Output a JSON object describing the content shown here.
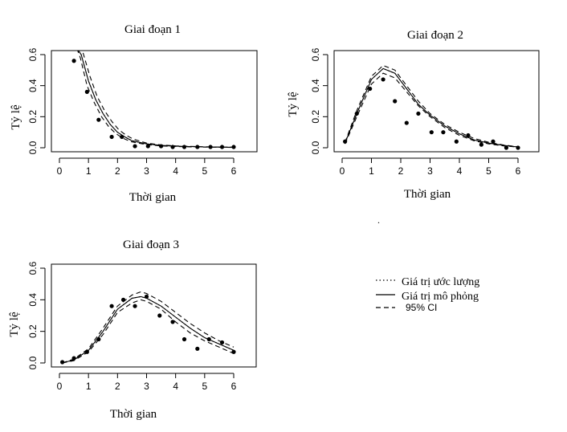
{
  "chart_data": [
    {
      "type": "line",
      "title": "Giai đoạn 1",
      "xlabel": "Thời gian",
      "ylabel": "Tỷ lệ",
      "xlim": [
        0,
        6
      ],
      "ylim": [
        0,
        0.6
      ],
      "xticks": [
        "0",
        "1",
        "2",
        "3",
        "4",
        "5",
        "6"
      ],
      "yticks": [
        "0.0",
        "0.2",
        "0.4",
        "0.6"
      ],
      "grid": false,
      "points": {
        "x": [
          0.5,
          0.95,
          1.35,
          1.8,
          2.15,
          2.6,
          3.05,
          3.5,
          3.9,
          4.3,
          4.75,
          5.2,
          5.6,
          6.0
        ],
        "y": [
          0.56,
          0.36,
          0.18,
          0.07,
          0.07,
          0.01,
          0.01,
          0.01,
          0.005,
          0.005,
          0.005,
          0.005,
          0.005,
          0.005
        ]
      },
      "series": [
        {
          "style": "solid",
          "x": [
            0.6,
            0.75,
            1.0,
            1.25,
            1.5,
            1.75,
            2.0,
            2.25,
            2.5,
            3.0,
            3.5,
            4.0,
            5.0,
            6.0
          ],
          "y": [
            0.64,
            0.6,
            0.43,
            0.31,
            0.22,
            0.15,
            0.1,
            0.07,
            0.045,
            0.025,
            0.015,
            0.01,
            0.005,
            0.003
          ]
        },
        {
          "style": "dotted",
          "x": [
            0.6,
            0.75,
            1.0,
            1.25,
            1.5,
            1.75,
            2.0,
            2.25,
            2.5,
            3.0,
            3.5,
            4.0,
            5.0,
            6.0
          ],
          "y": [
            0.64,
            0.6,
            0.43,
            0.31,
            0.22,
            0.15,
            0.1,
            0.07,
            0.045,
            0.025,
            0.015,
            0.01,
            0.005,
            0.003
          ]
        },
        {
          "style": "dashed",
          "x": [
            0.6,
            0.8,
            1.05,
            1.3,
            1.55,
            1.8,
            2.05,
            2.3,
            2.55,
            3.0,
            3.5,
            4.0,
            5.0,
            6.0
          ],
          "y": [
            0.64,
            0.62,
            0.46,
            0.33,
            0.24,
            0.17,
            0.115,
            0.08,
            0.055,
            0.03,
            0.018,
            0.012,
            0.006,
            0.003
          ]
        },
        {
          "style": "dashed",
          "x": [
            0.6,
            0.72,
            0.95,
            1.2,
            1.45,
            1.7,
            1.95,
            2.2,
            2.45,
            3.0,
            3.5,
            4.0,
            5.0,
            6.0
          ],
          "y": [
            0.64,
            0.58,
            0.4,
            0.29,
            0.2,
            0.135,
            0.09,
            0.06,
            0.04,
            0.02,
            0.012,
            0.008,
            0.004,
            0.002
          ]
        }
      ]
    },
    {
      "type": "line",
      "title": "Giai đoạn 2",
      "xlabel": "Thời gian",
      "ylabel": "Tỷ lệ",
      "xlim": [
        0,
        6
      ],
      "ylim": [
        0,
        0.6
      ],
      "xticks": [
        "0",
        "1",
        "2",
        "3",
        "4",
        "5",
        "6"
      ],
      "yticks": [
        "0.0",
        "0.2",
        "0.4",
        "0.6"
      ],
      "grid": false,
      "points": {
        "x": [
          0.1,
          0.5,
          0.95,
          1.4,
          1.8,
          2.2,
          2.6,
          3.05,
          3.45,
          3.9,
          4.3,
          4.75,
          5.15,
          5.6,
          6.0
        ],
        "y": [
          0.04,
          0.22,
          0.38,
          0.44,
          0.3,
          0.16,
          0.22,
          0.1,
          0.1,
          0.04,
          0.08,
          0.02,
          0.04,
          0.0,
          0.0
        ]
      },
      "series": [
        {
          "style": "solid",
          "x": [
            0.1,
            0.5,
            1.0,
            1.4,
            1.8,
            2.2,
            2.6,
            3.0,
            3.5,
            4.0,
            4.5,
            5.0,
            5.5,
            6.0
          ],
          "y": [
            0.03,
            0.22,
            0.44,
            0.51,
            0.48,
            0.38,
            0.28,
            0.21,
            0.14,
            0.09,
            0.05,
            0.03,
            0.015,
            0.005
          ]
        },
        {
          "style": "dotted",
          "x": [
            0.1,
            0.5,
            1.0,
            1.4,
            1.8,
            2.2,
            2.6,
            3.0,
            3.5,
            4.0,
            4.5,
            5.0,
            5.5,
            6.0
          ],
          "y": [
            0.03,
            0.22,
            0.44,
            0.51,
            0.48,
            0.38,
            0.28,
            0.21,
            0.14,
            0.09,
            0.05,
            0.03,
            0.015,
            0.005
          ]
        },
        {
          "style": "dashed",
          "x": [
            0.1,
            0.5,
            1.0,
            1.4,
            1.8,
            2.2,
            2.6,
            3.0,
            3.5,
            4.0,
            4.5,
            5.0,
            5.5,
            6.0
          ],
          "y": [
            0.035,
            0.24,
            0.46,
            0.53,
            0.5,
            0.4,
            0.3,
            0.22,
            0.15,
            0.1,
            0.06,
            0.035,
            0.018,
            0.006
          ]
        },
        {
          "style": "dashed",
          "x": [
            0.1,
            0.5,
            1.0,
            1.4,
            1.8,
            2.2,
            2.6,
            3.0,
            3.5,
            4.0,
            4.5,
            5.0,
            5.5,
            6.0
          ],
          "y": [
            0.025,
            0.2,
            0.41,
            0.48,
            0.45,
            0.36,
            0.27,
            0.2,
            0.13,
            0.08,
            0.045,
            0.025,
            0.012,
            0.004
          ]
        }
      ]
    },
    {
      "type": "line",
      "title": "Giai đoạn 3",
      "xlabel": "Thời gian",
      "ylabel": "Tỷ lệ",
      "xlim": [
        0,
        6
      ],
      "ylim": [
        0,
        0.6
      ],
      "xticks": [
        "0",
        "1",
        "2",
        "3",
        "4",
        "5",
        "6"
      ],
      "yticks": [
        "0.0",
        "0.2",
        "0.4",
        "0.6"
      ],
      "grid": false,
      "points": {
        "x": [
          0.1,
          0.5,
          0.95,
          1.35,
          1.8,
          2.2,
          2.6,
          3.0,
          3.45,
          3.9,
          4.3,
          4.75,
          5.15,
          5.6,
          6.0
        ],
        "y": [
          0.005,
          0.03,
          0.07,
          0.15,
          0.36,
          0.4,
          0.36,
          0.42,
          0.3,
          0.26,
          0.15,
          0.09,
          0.15,
          0.13,
          0.07
        ]
      },
      "series": [
        {
          "style": "solid",
          "x": [
            0.1,
            0.5,
            1.0,
            1.5,
            2.0,
            2.5,
            2.8,
            3.0,
            3.5,
            4.0,
            4.5,
            5.0,
            5.5,
            6.0
          ],
          "y": [
            0.0,
            0.02,
            0.08,
            0.2,
            0.34,
            0.41,
            0.42,
            0.41,
            0.36,
            0.29,
            0.22,
            0.16,
            0.12,
            0.08
          ]
        },
        {
          "style": "dotted",
          "x": [
            0.1,
            0.5,
            1.0,
            1.5,
            2.0,
            2.5,
            2.8,
            3.0,
            3.5,
            4.0,
            4.5,
            5.0,
            5.5,
            6.0
          ],
          "y": [
            0.0,
            0.02,
            0.08,
            0.2,
            0.34,
            0.41,
            0.42,
            0.41,
            0.36,
            0.29,
            0.22,
            0.16,
            0.12,
            0.08
          ]
        },
        {
          "style": "dashed",
          "x": [
            0.1,
            0.5,
            1.0,
            1.5,
            2.0,
            2.5,
            2.8,
            3.0,
            3.5,
            4.0,
            4.5,
            5.0,
            5.5,
            6.0
          ],
          "y": [
            0.0,
            0.025,
            0.09,
            0.22,
            0.36,
            0.43,
            0.45,
            0.44,
            0.39,
            0.32,
            0.25,
            0.19,
            0.14,
            0.1
          ]
        },
        {
          "style": "dashed",
          "x": [
            0.1,
            0.5,
            1.0,
            1.5,
            2.0,
            2.5,
            2.8,
            3.0,
            3.5,
            4.0,
            4.5,
            5.0,
            5.5,
            6.0
          ],
          "y": [
            0.0,
            0.015,
            0.07,
            0.18,
            0.32,
            0.38,
            0.4,
            0.39,
            0.34,
            0.26,
            0.19,
            0.14,
            0.1,
            0.06
          ]
        }
      ]
    }
  ],
  "legend": {
    "placement": "bottom-right",
    "items": [
      {
        "label": "Giá trị ước lượng",
        "style": "dotted"
      },
      {
        "label": "Giá trị mô phỏng",
        "style": "solid"
      },
      {
        "label": "95% CI",
        "style": "dashed"
      }
    ]
  },
  "stray_mark": "."
}
